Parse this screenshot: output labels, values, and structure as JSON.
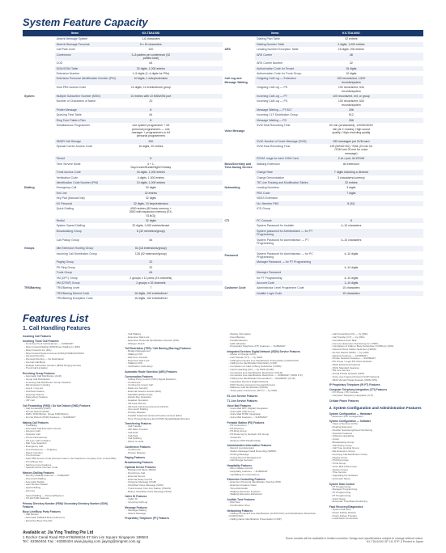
{
  "title": "System Feature Capacity",
  "header": {
    "c1": "Items",
    "c2": "KX-TDA100D",
    "c3": "Items",
    "c4": "KX-TDA100D"
  },
  "rows": [
    {
      "alt": false,
      "g1": "",
      "f1": "Absent Message System",
      "v1": "1-6 characters",
      "v2": "",
      "g2": "",
      "f2": "Dialling Plan Table",
      "v3": "32 entries",
      "v4": ""
    },
    {
      "alt": true,
      "g1": "",
      "f1": "Absent Message Personal",
      "v1": "8 x 16 characters",
      "v2": "",
      "g2": "",
      "f2": "Dialling Number Table",
      "v3": "4 digits, 1,000 entries",
      "v4": ""
    },
    {
      "alt": false,
      "g1": "",
      "f1": "Call Park Zone",
      "v1": "100",
      "v2": "",
      "g2": "ARS",
      "f2": "Leading Number Exception Table",
      "v3": "16 digits, 200 entries",
      "v4": ""
    },
    {
      "alt": true,
      "g1": "",
      "f1": "Conference",
      "v1": "3–8 parties per conference (32 parties total)",
      "v2": "",
      "g2": "",
      "f2": "ARS Carrier",
      "v3": "48",
      "v4": ""
    },
    {
      "alt": false,
      "g1": "",
      "f1": "COS",
      "v1": "64",
      "v2": "",
      "g2": "",
      "f2": "ARS Carrier Number",
      "v3": "32",
      "v4": ""
    },
    {
      "alt": true,
      "g1": "",
      "f1": "DISA/OGM Table",
      "v1": "32 digits, 1,000 entries",
      "v2": "",
      "g2": "",
      "f2": "Authorization Code for Tenant",
      "v3": "16 digits",
      "v4": ""
    },
    {
      "alt": false,
      "g1": "",
      "f1": "Extension Number",
      "v1": "1–5 digits (1–4 digits for PSs)",
      "v2": "",
      "g2": "",
      "f2": "Authorization Code for Trunk Group",
      "v3": "10 digits",
      "v4": ""
    },
    {
      "alt": true,
      "g1": "",
      "f1": "Extension Personal Identification Number (PIN)",
      "v1": "10 digits, 1 entry/extension",
      "v2": "",
      "g2": "Call Log and Message Waiting",
      "f2": "Outgoing Call Log — Extension",
      "v3": "100 records/ext, 1,520 records/system",
      "v4": ""
    },
    {
      "alt": false,
      "g1": "",
      "f1": "Host PBX Access Code",
      "v1": "10 digits, 10 entries/trunk group",
      "v2": "",
      "g2": "",
      "f2": "Outgoing Call Log — PS",
      "v3": "100 records/ext, 640 records/system",
      "v4": ""
    },
    {
      "alt": true,
      "g1": "System",
      "f1": "Multiple Subscriber Number (MSN)",
      "v1": "10 entries with 10 MSN/ISN port",
      "v2": "",
      "g2": "",
      "f2": "Incoming Call Log — PT",
      "v3": "100 records/ext, ext, or group",
      "v4": ""
    },
    {
      "alt": false,
      "g1": "",
      "f1": "Number of Characters of Name",
      "v1": "20",
      "v2": "",
      "g2": "",
      "f2": "Incoming Call Log — PS",
      "v3": "100 records/ext, 640 records/system",
      "v4": ""
    },
    {
      "alt": true,
      "g1": "",
      "f1": "Printer Message",
      "v1": "8",
      "v2": "",
      "g2": "",
      "f2": "Message Waiting — PT/SLT",
      "v3": "256",
      "v4": ""
    },
    {
      "alt": false,
      "g1": "",
      "f1": "Queuing Time Table",
      "v1": "64",
      "v2": "",
      "g2": "",
      "f2": "Incoming CLF Distribution Group",
      "v3": "512",
      "v4": ""
    },
    {
      "alt": true,
      "g1": "",
      "f1": "Ring Tone Pattern Plan",
      "v1": "8",
      "v2": "",
      "g2": "",
      "f2": "Message Waiting — PS",
      "v3": "256",
      "v4": ""
    },
    {
      "alt": false,
      "g1": "",
      "f1": "Simultaneous Programmer",
      "v1": "one system programmer + 63 personal programmers — one manager + programmers or 64 personal programmers",
      "v2": "",
      "g2": "Voice Message",
      "f2": "SVM Total Recording Time",
      "v3": "60 min (at standard), 120/60/30/20 min (at X modes). High sound quality / High recording quality",
      "v4": ""
    },
    {
      "alt": true,
      "g1": "",
      "f1": "SMDR Call Storage",
      "v1": "200",
      "v2": "",
      "g2": "",
      "f2": "SVM: Number of Voice Message (SVM)",
      "v3": "250 messages per SVM card",
      "v4": ""
    },
    {
      "alt": false,
      "g1": "",
      "f1": "Special Carrier Access Code",
      "v1": "16 digits, 20 entries",
      "v2": "",
      "g2": "",
      "f2": "SVM Total Recording Time",
      "v3": "125 (MSG0740) / SM4 (20 min for OGM and 20 min for voice message)",
      "v4": ""
    },
    {
      "alt": true,
      "g1": "",
      "f1": "Tenant",
      "v1": "8",
      "v2": "",
      "g2": "",
      "f2": "ESVM: msgs for each OGM Card",
      "v3": "2 ch / port, 64 ESVM",
      "v4": ""
    },
    {
      "alt": false,
      "g1": "",
      "f1": "Time Service Mode",
      "v1": "4 + 1: Day/Lunch/Break/Night+Holiday",
      "v2": "",
      "g2": "Boss/Secretary and Time-Saving Service",
      "f2": "Walking Extension",
      "v3": "All extension",
      "v4": ""
    },
    {
      "alt": true,
      "g1": "",
      "f1": "Trunk Access Code",
      "v1": "16 digits, 1,000 entries",
      "v2": "",
      "g2": "",
      "f2": "Charge Rate",
      "v3": "7 digits including a decimal",
      "v4": ""
    },
    {
      "alt": false,
      "g1": "",
      "f1": "Verification Code",
      "v1": "4 digits, 1,000 entries",
      "v2": "",
      "g2": "",
      "f2": "Charge Denomination",
      "v3": "3 characters/currency",
      "v4": ""
    },
    {
      "alt": true,
      "g1": "",
      "f1": "Identification Code Number (PIN)",
      "v1": "10 digits, 1,000 entries",
      "v2": "",
      "g2": "",
      "f2": "TIE Line Routing and Modification Tables",
      "v3": "32 entries",
      "v4": ""
    },
    {
      "alt": false,
      "g1": "Dialling",
      "f1": "Emergency Call",
      "v1": "32 digits",
      "v2": "",
      "g2": "Networking",
      "f2": "Leading Numbers",
      "v3": "3 digits",
      "v4": ""
    },
    {
      "alt": true,
      "g1": "",
      "f1": "Hot Line",
      "v1": "32 entries",
      "v2": "",
      "g2": "",
      "f2": "PBX Code",
      "v3": "7 digits",
      "v4": ""
    },
    {
      "alt": false,
      "g1": "",
      "f1": "Key Pad (Manual Dial)",
      "v1": "32 digits",
      "v2": "",
      "g2": "",
      "f2": "NDSS Extension",
      "v3": "",
      "v4": ""
    },
    {
      "alt": true,
      "g1": "",
      "f1": "KX Personal",
      "v1": "32 digits, 10 keys/extension",
      "v2": "",
      "g2": "",
      "f2": "No. Member PBX",
      "v3": "8 (32)",
      "v4": ""
    },
    {
      "alt": false,
      "g1": "",
      "f1": "Quick Dialling",
      "v1": "4000 entries (80 basic memory + 3920 with expansion memory (EX-S1NG))",
      "v2": "",
      "g2": "",
      "f2": "ICD Group",
      "v3": "",
      "v4": ""
    },
    {
      "alt": true,
      "g1": "",
      "f1": "Redial",
      "v1": "32 digits",
      "v2": "",
      "g2": "CTI",
      "f2": "PC Console",
      "v3": "8",
      "v4": ""
    },
    {
      "alt": false,
      "g1": "",
      "f1": "System Speed Dialling",
      "v1": "32 digits, 1,000 entries/tenant",
      "v2": "",
      "g2": "",
      "f2": "System Password for Installer",
      "v3": "4–10 characters",
      "v4": ""
    },
    {
      "alt": true,
      "g1": "",
      "f1": "Broadcasting Group",
      "v1": "8 (32 members/group)",
      "v2": "",
      "g2": "",
      "f2": "System password for Administrator — for PT Programming",
      "v3": "",
      "v4": ""
    },
    {
      "alt": false,
      "g1": "",
      "f1": "Call Pickup Group",
      "v1": "64",
      "v2": "",
      "g2": "",
      "f2": "System Password for Administrator — PT Programming",
      "v3": "4–10 characters",
      "v4": ""
    },
    {
      "alt": true,
      "g1": "Groups",
      "f1": "Idle Extension Hunting Group",
      "v1": "64 (16 extensions/group)",
      "v2": "",
      "g2": "",
      "f2": "",
      "v3": "",
      "v4": ""
    },
    {
      "alt": false,
      "g1": "",
      "f1": "Incoming Call Distribution Group",
      "v1": "128 (32 extension/group)",
      "v2": "",
      "g2": "Password",
      "f2": "System Password for Administrator — for PC Programming",
      "v3": "4–10 digits",
      "v4": ""
    },
    {
      "alt": true,
      "g1": "",
      "f1": "Paging Group",
      "v1": "32",
      "v2": "",
      "g2": "",
      "f2": "Manager Password — for PT Programming",
      "v3": "",
      "v4": ""
    },
    {
      "alt": false,
      "g1": "",
      "f1": "PS Ring Group",
      "v1": "32",
      "v2": "",
      "g2": "",
      "f2": "",
      "v3": "4–10 digits",
      "v4": ""
    },
    {
      "alt": true,
      "g1": "",
      "f1": "Trunk Group",
      "v1": "64",
      "v2": "",
      "g2": "",
      "f2": "Manager Password",
      "v3": "",
      "v4": ""
    },
    {
      "alt": false,
      "g1": "",
      "f1": "VM (DPT) Group",
      "v1": "2 groups x 12 ports (24 channels)",
      "v2": "",
      "g2": "",
      "f2": "for PT Programming",
      "v3": "4–10 digits",
      "v4": ""
    },
    {
      "alt": true,
      "g1": "",
      "f1": "VM (DTMF) Group",
      "v1": "2 groups x 32 channels",
      "v2": "",
      "g2": "",
      "f2": "Account Code",
      "v3": "1–10 digits",
      "v4": ""
    },
    {
      "alt": false,
      "g1": "TRS/Barring",
      "f1": "TRS/Barring Level",
      "v1": "7",
      "v2": "",
      "g2": "Customer Code",
      "f2": "Administrator Level Programme Code",
      "v3": "10 characters",
      "v4": ""
    },
    {
      "alt": true,
      "g1": "",
      "f1": "TRS/Barring Denied Code",
      "v1": "16 digits, 100 entries/level",
      "v2": "",
      "g2": "",
      "f2": "Installer Login Code",
      "v3": "10 characters",
      "v4": ""
    },
    {
      "alt": false,
      "g1": "",
      "f1": "TRS/Barring Exception Code",
      "v1": "16 digits, 100 entries/level",
      "v2": "",
      "g2": "",
      "f2": "",
      "v3": "",
      "v4": ""
    }
  ],
  "features_title": "Features List",
  "features_subtitle_1": "1. Call Handling Features",
  "features_subtitle_2": "2. System Configuration and Administration Features",
  "fcol1": {
    "g1": "Incoming Call Features",
    "g1s1": "Incoming Trunk Call Features",
    "g1s1_items": [
      "Incoming Trunk Call Features — SUMMARY",
      "Direct Inward Dialling (DID)/Direct Dialling In (DDI)",
      "Direct Inward Line (DIL)",
      "Direct Inward System Access (DISA)/OGMFLEX/DISA",
      "Intercept Routing",
      "Intercept Routing — No Destination",
      "Internal Call Block",
      "Multiple Subscriber Number (MSN) Ringing Service",
      "Trunk Call Limitation"
    ],
    "g1s2": "Receiving Group Features",
    "g1s2_items": [
      "Automatic Call Distribution (ACD)",
      "Group Call Distribution",
      "Incoming Call Distribution Group Features",
      "Idle Extension Hunting",
      "Log-in / Log-out",
      "Overflow Feature",
      "Queuing Feature",
      "Supervisory Feature",
      "VIP Call"
    ],
    "g1s3": "Call Forwarding (FWD) / Do Not Disturb (DND) Features",
    "g1s3_items": [
      "Call Forwarding (FWD)",
      "Do Not Disturb (DND)",
      "FWD / DND Button, Group FWD Button",
      "Do Not Disturb (DND) Features — SUMMARY"
    ],
    "g1s4": "Making Call Features",
    "g1s4_items": [
      "Predialling",
      "Automatic Call Extension Access",
      "Intercom Call",
      "Operator Call",
      "Trunk Call Features",
      "CO Line Call Limitation",
      "Dial Type Selection",
      "Emergency Call",
      "Line Preference — Outgoing",
      "Pause Insertion",
      "Trunk Access",
      "Host PBX Access Code (Access Code to the Telephone Company from a Host PBX)",
      "Trunk Busy Out",
      "Seizing a Line Features",
      "Special Carrier Number Code"
    ],
    "g1s5": "Memory Dialling Features",
    "g1s5_items": [
      "Memory Dialling Features — SUMMARY",
      "One-touch Dialling",
      "Automatic Redial",
      "Last Number Redial",
      "Quick Dialling",
      "Hot Line"
    ]
  },
  "fcol2": {
    "g1_items": [
      "Speed Dialling — Personal/System",
      "KX-HGT100 Features"
    ],
    "g2": "Primary Directory Number (PDN)/ Secondary Directory Number (SDN) Features",
    "g3": "Busy Line/Busy Party Features",
    "g3_items": [
      "Call Monitor",
      "Automatic Callback Busy (Camp-on)",
      "Executive Busy Override",
      "Call Waiting",
      "Extension Dial Lock",
      "Extension Personal Identification Number (PIN)",
      "Whisper OHCA"
    ],
    "g4": "Toll Restriction (TRS) / Call Barring (Barring) Features",
    "g4_items": [
      "Budget Management",
      "Walking COS",
      "Dial Tone Transfer",
      "Extension Dial Lock",
      "Walking COS",
      "Verification Code Entry"
    ],
    "g5": "Automatic Route Selection (ARS) Features",
    "g6": "Conversation Features",
    "g6_items": [
      "Calling Party Control (CPC) Signal Detection",
      "Conference",
      "Conference Group Call",
      "Data Line Security",
      "External Feature Access (EFA)",
      "Flash/Recall/Terminate",
      "Hands-free Operation",
      "Headset Operation",
      "Off-hook Monitor",
      "Off-hook Call Announcement (OHCA)",
      "One-touch Dialling",
      "Privacy Release",
      "Parallel Telephone External Feature Access (EFA)",
      "Tone Through (End-to-End DTMF Signal)/Digital Direction"
    ],
    "g7": "Transferring Features",
    "g7_items": [
      "Call Transfer",
      "SIP Refer Transfer",
      "Call Hold",
      "Call Park",
      "Call Splitting",
      "Music on Hold"
    ],
    "g8": "Conference Features",
    "g8_items": [
      "Conference",
      "Privacy Release"
    ],
    "g9": "Paging Features",
    "g10": "Broadcasting Features",
    "g11": "Optional Device Features",
    "g11_items": [
      "Background Music (BGM)",
      "Doorphone Call",
      "External Sensor",
      "External Relay Control",
      "Outgoing Message (OGM)",
      "Simplified Voice Message (SVM)",
      "Trunk Answer from Any Station (TAFAS)",
      "Built-in Simplified Voice Message (SVM)"
    ]
  },
  "fcol3": {
    "g1": "Caller ID Features",
    "g1_items": [
      "Caller ID",
      "Incoming Call Log"
    ],
    "g2": "Message Features",
    "g2_items": [
      "Message Waiting",
      "Absent Message"
    ],
    "g3": "Proprietary Telephone (PT) Features",
    "g3_items": [
      "Display Information",
      "Fixed Buttons",
      "Flexible Buttons",
      "LED Indication",
      "Proprietary Telephone (PT) Features — SUMMARY"
    ],
    "g4": "Integrated Services Digital Network (ISDN) Service Features",
    "g4_items": [
      "Advice of Charge (AOC)",
      "Call Transfer (CT) — by ISDN",
      "Calling/Connected Line Identification Presentation (CLIP/COLP)",
      "Calling Line Identification Restriction (CLIR)",
      "Completion of Calls to Busy Subscriber (CCBS)",
      "Call Forwarding (CF) — by ISDN (P-MP)",
      "Connected Line Identification Restriction (COLR)",
      "Connected Line Identification Restriction — SUMMARY (ISDN P-P)",
      "Calling Line Identification Presentation — SUMMARY (CLIP)",
      "Integrated Services Digital Network",
      "ISDN Service Access by Keypad Protocol",
      "Malicious Call Identification (MCID)",
      "Three-party Conference (3PTY) — by ISDN"
    ],
    "g5": "E1 Line Service Features",
    "g6": "T1 Line Service Features",
    "g7": "Voice Mail Features",
    "g7_items": [
      "Voice Mail DPT (Digital) Integration",
      "Voice Mail (VM) Group",
      "Voice Mail DTMF Integration",
      "Voice Mail Features — SUMMARY"
    ],
    "g8": "Portable Station (PS) Features",
    "g8_items": [
      "PS Connection",
      "PS Directory",
      "PS Ring Group",
      "PS Roaming by Network ICD Group",
      "Virtual PS",
      "Wireless XDP Parallel Mode"
    ],
    "g9": "Administrative Information Features",
    "g9_items": [
      "Record Log Extension",
      "Station Message Detail Recording (SMDR)",
      "Printing Message",
      "Syslog Record Management",
      "Call Charge Services"
    ],
    "g10": "Hospitality Features",
    "g10_items": [
      "Room Status Control",
      "Hospitality Features — SUMMARY",
      "Call Billing for Guest Room"
    ],
    "g11": "Extension Controlling Features",
    "g11_items": [
      "Extension Personal Identification Number (PIN)",
      "Extension Feature Clear",
      "Timed Reminder",
      "Walking Extension Features",
      "Walking Extension-Enhanced"
    ],
    "g12": "Audible Tone Features",
    "g12_items": [
      "Dial Tone",
      "Confirmation Tone"
    ]
  },
  "fcol4": {
    "g1": "Networking Features",
    "g1_items": [
      "Calling Connected Line Identification (CLIP/COLP) and Identification Restriction (CLIR/COLR)",
      "Calling Name Identification Presentation (CNIP)",
      "Call Forwarding (CF) — by QSIG",
      "Call Transfer (CT) — by QSIG",
      "Centralized Voice Mail",
      "Common Extension Numbering for 2 PBXs",
      "Completion of Calls to Busy Subscriber (CCBS) by QSIG",
      "Network Direct Station Selection (NDSS)",
      "Do Not Disturb (DND) — by QSIG",
      "Network Features — SUMMARY",
      "Private Network Features — SUMMARY",
      "PG Group / Logic-PG Voice Network",
      "QSIG Enhanced Features",
      "QSIG Standard Features",
      "TIE Line Service",
      "Virtual Private Network (VPN)",
      "Voice over Internet Protocol (VoIP) Network",
      "ISDN Virtual Private Network (ISDN-VPN)"
    ],
    "g2": "IP Proprietary Telephone (IP-PT) Features",
    "g3": "Computer Telephony Integration (CTI) Features",
    "g3_items": [
      "PC Phone / PC Console",
      "Computer Telephony Integration (CTI)"
    ],
    "g4": "Cellular Phone Features",
    "sec2": "System Configuration — Hardware",
    "sec2_items": [
      "Extension Port Configuration"
    ],
    "sec3": "System Configuration — Software",
    "sec3_items": [
      "Class of Service (COS)",
      "Floating Extension",
      "Flexible Numbering/Fixed Numbering",
      "Operator Features",
      "Software Upgrading",
      "Group",
      "Broadcasting Group",
      "Call Pickup Group",
      "Call Type Hunting Group",
      "Idle Extension Group",
      "Incoming Call Distribution Group",
      "Paging Group",
      "PS Ring Group",
      "Trunk Group",
      "Voice Mail (VM) Group",
      "System Group",
      "Time Service",
      "Upgrading the Software",
      "Automatic Setup"
    ],
    "sec4": "System Data Control",
    "sec4_items": [
      "PT Programming",
      "Manager Programming",
      "PT Programming",
      "PT Programming",
      "Quick Setup",
      "Automatic Time/Date Numbering"
    ],
    "sec5": "Fault Recovery/Diagnostics",
    "sec5_items": [
      "System Fail-Over",
      "Power Failure Restart",
      "Power Failure Transfer",
      "Local Alarm Connection"
    ]
  },
  "footer": {
    "addr1": "Available at: Jia Ying Trading Pte Ltd",
    "addr2": "1 Rochor Canal Road #02-67/68/69/34-37 Sim Lim Square Singapore 188504",
    "addr3": "Tel : 63360404  Fax : 63380404  www.jiaying.com  jiaying@singnet.com.sg",
    "note1": "Some models will be available in limited countries. Design and specifications subject to change without notice.",
    "note2": "KX-TDA100D SP 111 STP-3 Printed in Japan"
  }
}
